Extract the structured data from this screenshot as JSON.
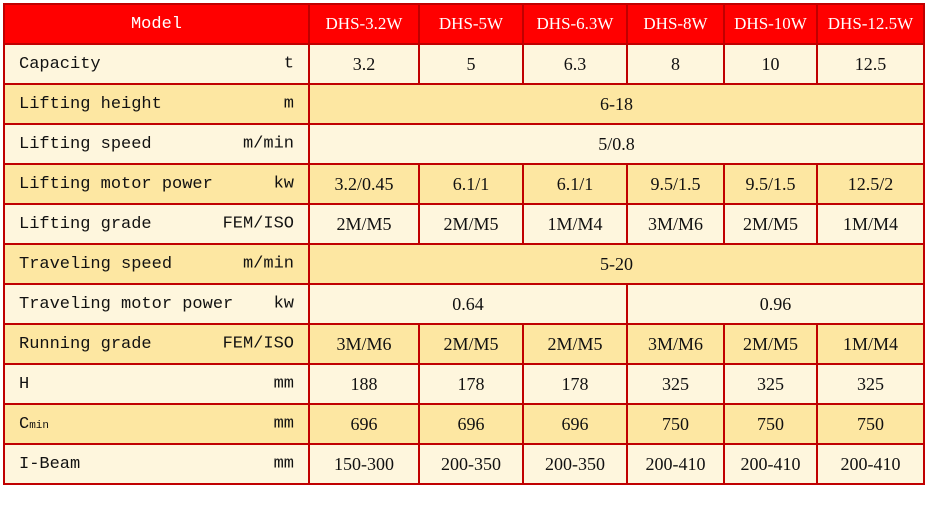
{
  "header": {
    "label": "Model",
    "models": [
      "DHS-3.2W",
      "DHS-5W",
      "DHS-6.3W",
      "DHS-8W",
      "DHS-10W",
      "DHS-12.5W"
    ]
  },
  "rows": [
    {
      "label": "Capacity",
      "unit": "t",
      "cells": [
        {
          "v": "3.2",
          "span": 1
        },
        {
          "v": "5",
          "span": 1
        },
        {
          "v": "6.3",
          "span": 1
        },
        {
          "v": "8",
          "span": 1
        },
        {
          "v": "10",
          "span": 1
        },
        {
          "v": "12.5",
          "span": 1
        }
      ]
    },
    {
      "label": "Lifting height",
      "unit": "m",
      "cells": [
        {
          "v": "6-18",
          "span": 6
        }
      ]
    },
    {
      "label": "Lifting speed",
      "unit": "m/min",
      "cells": [
        {
          "v": "5/0.8",
          "span": 6
        }
      ]
    },
    {
      "label": "Lifting motor power",
      "unit": "kw",
      "cells": [
        {
          "v": "3.2/0.45",
          "span": 1
        },
        {
          "v": "6.1/1",
          "span": 1
        },
        {
          "v": "6.1/1",
          "span": 1
        },
        {
          "v": "9.5/1.5",
          "span": 1
        },
        {
          "v": "9.5/1.5",
          "span": 1
        },
        {
          "v": "12.5/2",
          "span": 1
        }
      ]
    },
    {
      "label": "Lifting grade",
      "unit": "FEM/ISO",
      "cells": [
        {
          "v": "2M/M5",
          "span": 1
        },
        {
          "v": "2M/M5",
          "span": 1
        },
        {
          "v": "1M/M4",
          "span": 1
        },
        {
          "v": "3M/M6",
          "span": 1
        },
        {
          "v": "2M/M5",
          "span": 1
        },
        {
          "v": "1M/M4",
          "span": 1
        }
      ]
    },
    {
      "label": "Traveling speed",
      "unit": "m/min",
      "cells": [
        {
          "v": "5-20",
          "span": 6
        }
      ]
    },
    {
      "label": "Traveling motor power",
      "unit": "kw",
      "cells": [
        {
          "v": "0.64",
          "span": 3
        },
        {
          "v": "0.96",
          "span": 3
        }
      ]
    },
    {
      "label": "Running grade",
      "unit": "FEM/ISO",
      "cells": [
        {
          "v": "3M/M6",
          "span": 1
        },
        {
          "v": "2M/M5",
          "span": 1
        },
        {
          "v": "2M/M5",
          "span": 1
        },
        {
          "v": "3M/M6",
          "span": 1
        },
        {
          "v": "2M/M5",
          "span": 1
        },
        {
          "v": "1M/M4",
          "span": 1
        }
      ]
    },
    {
      "label": "H",
      "unit": "mm",
      "cells": [
        {
          "v": "188",
          "span": 1
        },
        {
          "v": "178",
          "span": 1
        },
        {
          "v": "178",
          "span": 1
        },
        {
          "v": "325",
          "span": 1
        },
        {
          "v": "325",
          "span": 1
        },
        {
          "v": "325",
          "span": 1
        }
      ]
    },
    {
      "label": "C",
      "label_sub": "min",
      "unit": "mm",
      "cells": [
        {
          "v": "696",
          "span": 1
        },
        {
          "v": "696",
          "span": 1
        },
        {
          "v": "696",
          "span": 1
        },
        {
          "v": "750",
          "span": 1
        },
        {
          "v": "750",
          "span": 1
        },
        {
          "v": "750",
          "span": 1
        }
      ]
    },
    {
      "label": "I-Beam",
      "unit": "mm",
      "cells": [
        {
          "v": "150-300",
          "span": 1
        },
        {
          "v": "200-350",
          "span": 1
        },
        {
          "v": "200-350",
          "span": 1
        },
        {
          "v": "200-410",
          "span": 1
        },
        {
          "v": "200-410",
          "span": 1
        },
        {
          "v": "200-410",
          "span": 1
        }
      ]
    }
  ]
}
